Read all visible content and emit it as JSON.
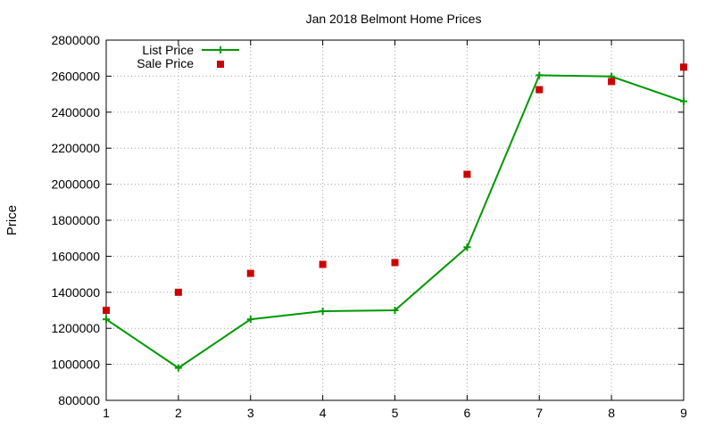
{
  "chart_data": {
    "type": "line",
    "title": "Jan 2018 Belmont Home Prices",
    "xlabel": "",
    "ylabel": "Price",
    "xlim": [
      1,
      9
    ],
    "ylim": [
      800000,
      2800000
    ],
    "x_ticks": [
      1,
      2,
      3,
      4,
      5,
      6,
      7,
      8,
      9
    ],
    "y_ticks": [
      800000,
      1000000,
      1200000,
      1400000,
      1600000,
      1800000,
      2000000,
      2200000,
      2400000,
      2600000,
      2800000
    ],
    "grid": true,
    "legend_position": "top-left",
    "x": [
      1,
      2,
      3,
      4,
      5,
      6,
      7,
      8,
      9
    ],
    "series": [
      {
        "name": "List Price",
        "style": "line+cross",
        "color": "#009900",
        "values": [
          1250000,
          980000,
          1250000,
          1295000,
          1300000,
          1650000,
          2605000,
          2598000,
          2460000
        ]
      },
      {
        "name": "Sale Price",
        "style": "square",
        "color": "#cc0000",
        "values": [
          1300000,
          1400000,
          1505000,
          1555000,
          1565000,
          2055000,
          2525000,
          2570000,
          2650000
        ]
      }
    ]
  }
}
